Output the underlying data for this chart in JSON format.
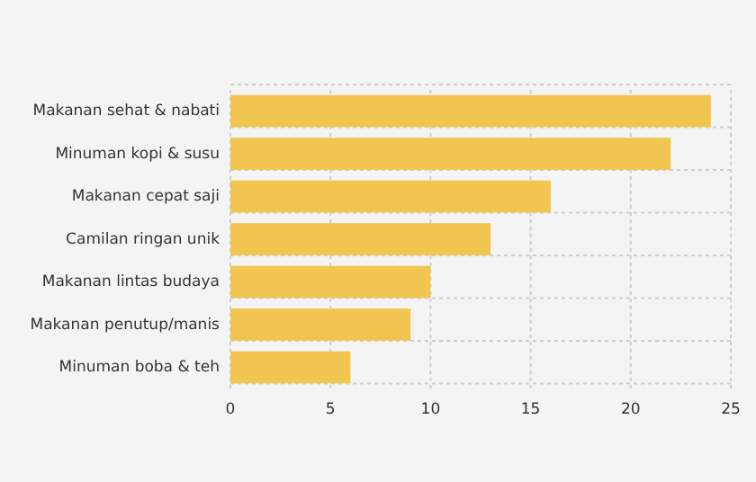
{
  "chart_data": {
    "type": "bar",
    "orientation": "horizontal",
    "categories": [
      "Makanan sehat & nabati",
      "Minuman kopi & susu",
      "Makanan cepat saji",
      "Camilan ringan unik",
      "Makanan lintas budaya",
      "Makanan penutup/manis",
      "Minuman boba & teh"
    ],
    "values": [
      24,
      22,
      16,
      13,
      10,
      9,
      6
    ],
    "color": "#f0c550",
    "xlim": [
      0,
      25
    ],
    "xticks": [
      0,
      5,
      10,
      15,
      20,
      25
    ],
    "grid": true
  }
}
